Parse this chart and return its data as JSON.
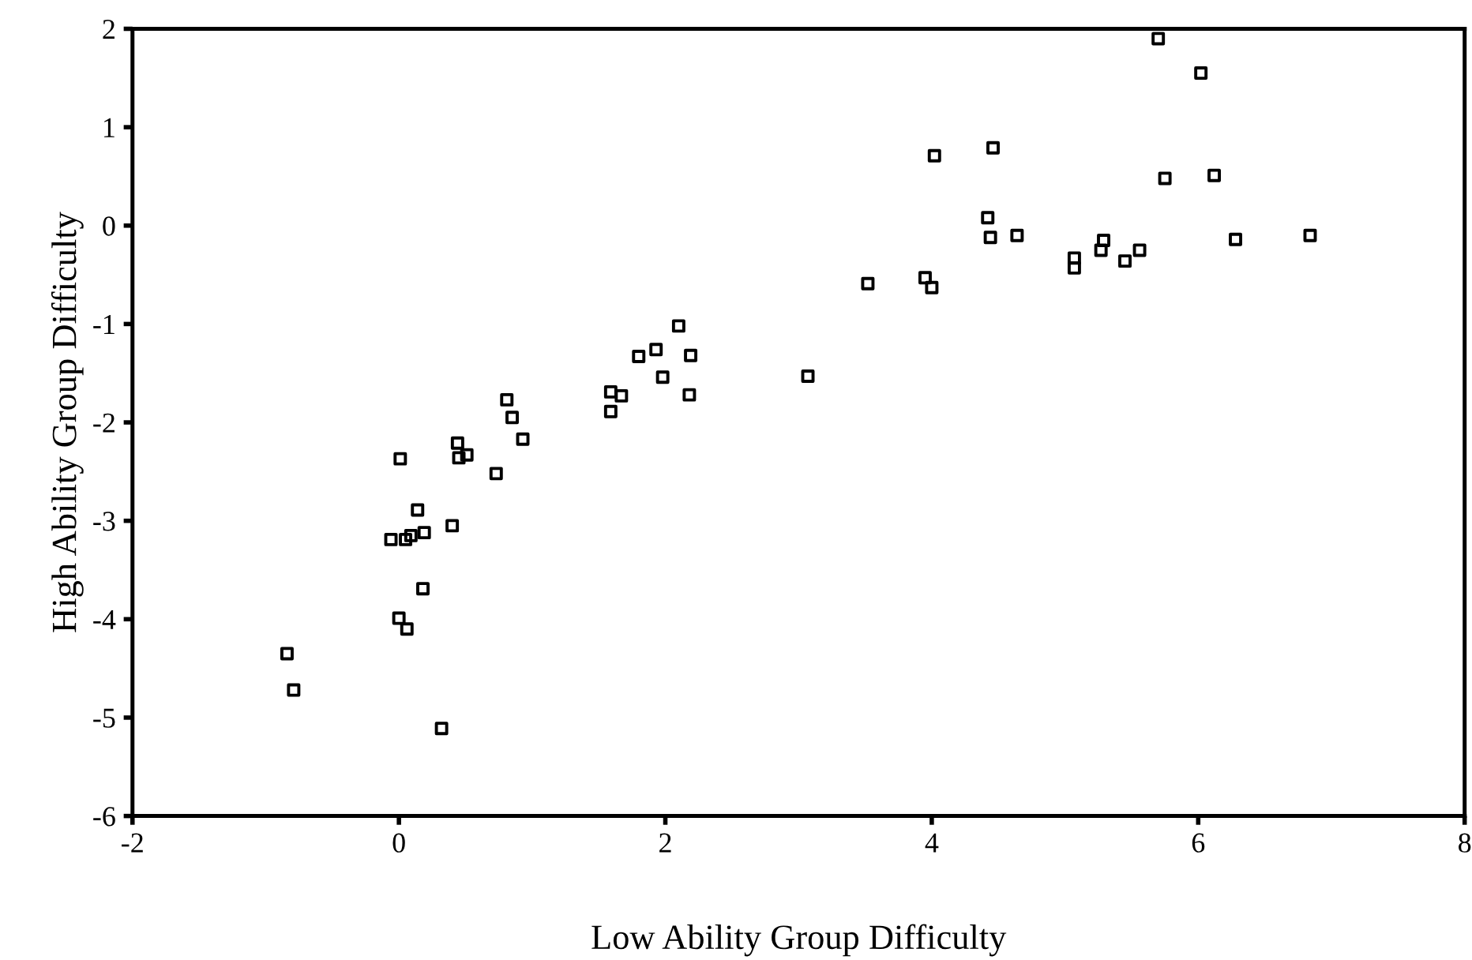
{
  "chart_data": {
    "type": "scatter",
    "xlabel": "Low Ability Group Difficulty",
    "ylabel": "High Ability Group Difficulty",
    "xlim": [
      -2,
      8
    ],
    "xticks": [
      -2,
      0,
      2,
      4,
      6,
      8
    ],
    "ylim": [
      -6,
      2
    ],
    "yticks": [
      -6,
      -5,
      -4,
      -3,
      -2,
      -1,
      0,
      1,
      2
    ],
    "grid": false,
    "marker": "square",
    "series": [
      {
        "color": "#000000",
        "x": [
          5.7,
          6.02,
          4.02,
          4.46,
          5.75,
          6.12,
          4.42,
          4.44,
          4.64,
          5.07,
          5.07,
          5.29,
          5.27,
          5.45,
          5.56,
          6.28,
          6.84,
          3.52,
          3.95,
          4.0,
          3.07,
          2.1,
          1.8,
          1.93,
          2.19,
          1.98,
          2.18,
          1.59,
          1.67,
          1.59,
          0.81,
          0.85,
          0.93,
          0.73,
          0.44,
          0.45,
          0.51,
          0.01,
          0.14,
          -0.06,
          0.05,
          0.09,
          0.19,
          0.4,
          0.18,
          0.0,
          0.06,
          -0.84,
          -0.79,
          0.32
        ],
        "values": [
          1.9,
          1.55,
          0.71,
          0.79,
          0.48,
          0.51,
          0.08,
          -0.12,
          -0.1,
          -0.33,
          -0.43,
          -0.15,
          -0.25,
          -0.36,
          -0.25,
          -0.14,
          -0.1,
          -0.59,
          -0.53,
          -0.63,
          -1.53,
          -1.02,
          -1.33,
          -1.26,
          -1.32,
          -1.54,
          -1.72,
          -1.69,
          -1.73,
          -1.89,
          -1.77,
          -1.95,
          -2.17,
          -2.52,
          -2.21,
          -2.36,
          -2.33,
          -2.37,
          -2.89,
          -3.19,
          -3.19,
          -3.15,
          -3.12,
          -3.05,
          -3.69,
          -3.99,
          -4.1,
          -4.35,
          -4.72,
          -5.11
        ]
      }
    ]
  }
}
